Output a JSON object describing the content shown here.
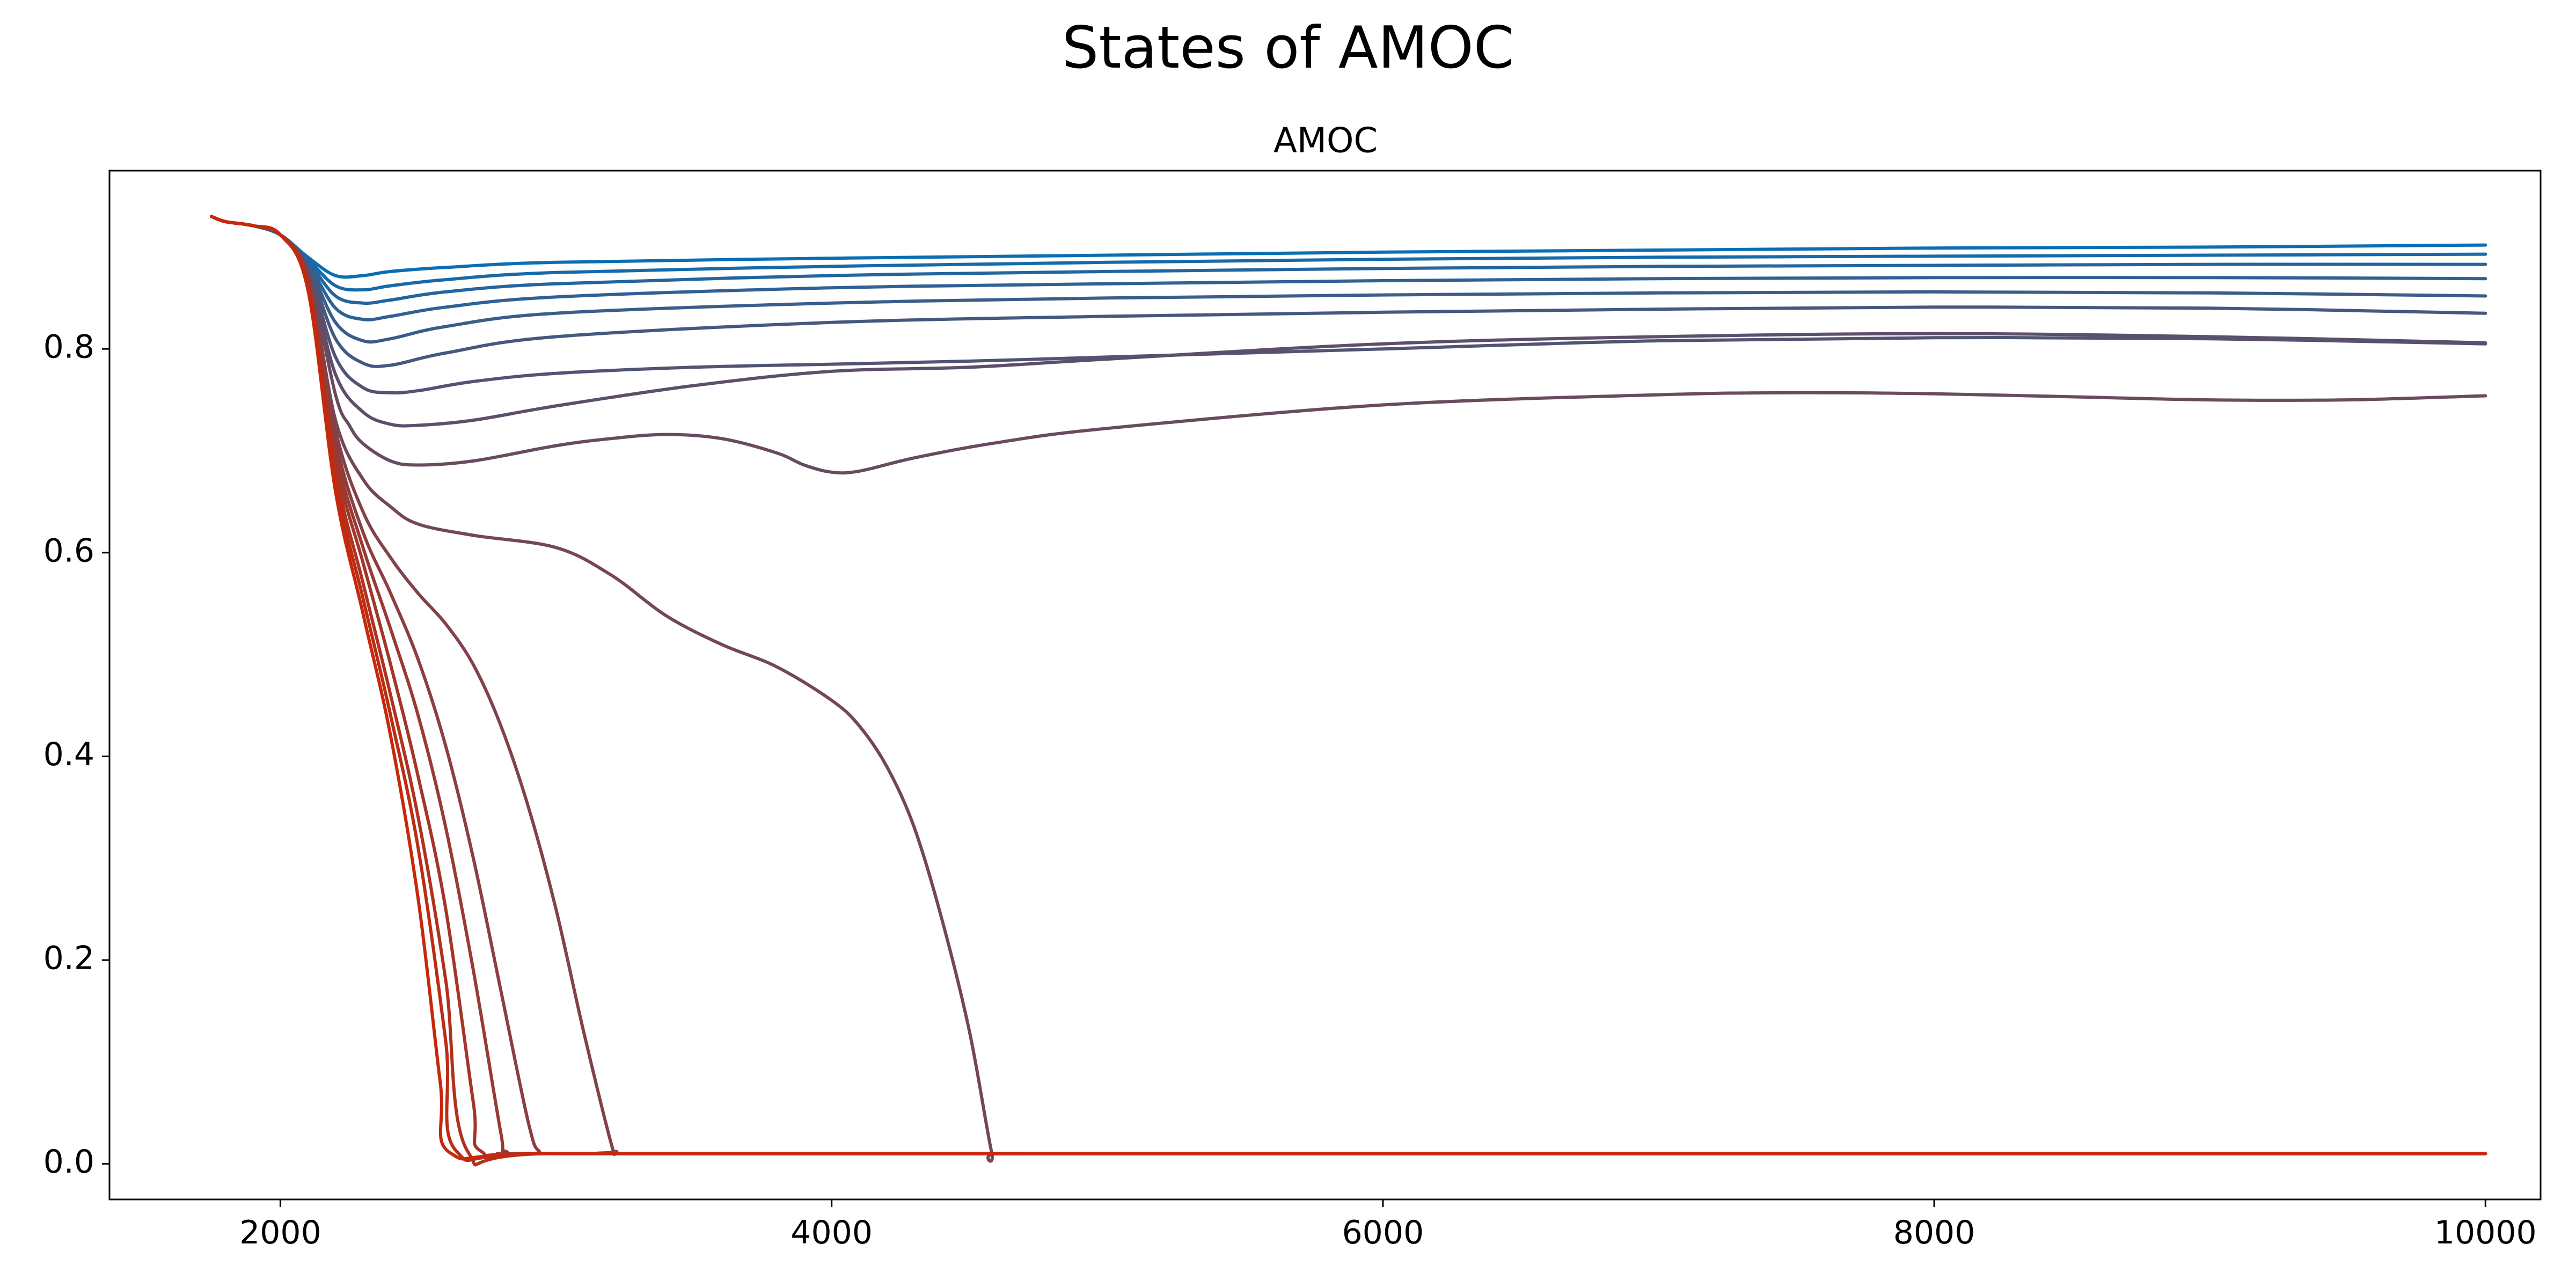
{
  "figure": {
    "suptitle": "States of AMOC"
  },
  "chart_data": {
    "type": "line",
    "title": "AMOC",
    "xlabel": "",
    "ylabel": "",
    "xlim": [
      1380,
      10200
    ],
    "ylim": [
      -0.035,
      0.975
    ],
    "xticks": [
      2000,
      4000,
      6000,
      8000,
      10000
    ],
    "xtick_labels": [
      "2000",
      "4000",
      "6000",
      "8000",
      "10000"
    ],
    "yticks": [
      0.0,
      0.2,
      0.4,
      0.6,
      0.8
    ],
    "ytick_labels": [
      "0.0",
      "0.2",
      "0.4",
      "0.6",
      "0.8"
    ],
    "grid": false,
    "legend": "none",
    "color_from": "#0a6eb4",
    "color_to": "#c8280a",
    "series": [
      {
        "x": [
          1750,
          1800,
          1900,
          2000,
          2100,
          2200,
          2300,
          2400,
          2600,
          3000,
          4000,
          5000,
          6000,
          7000,
          8000,
          9000,
          10000
        ],
        "y": [
          0.93,
          0.925,
          0.921,
          0.912,
          0.89,
          0.872,
          0.872,
          0.876,
          0.88,
          0.885,
          0.889,
          0.892,
          0.895,
          0.897,
          0.899,
          0.9,
          0.902
        ]
      },
      {
        "x": [
          1750,
          1800,
          1900,
          2000,
          2100,
          2200,
          2300,
          2400,
          2600,
          3000,
          4000,
          5000,
          6000,
          7000,
          8000,
          9000,
          10000
        ],
        "y": [
          0.93,
          0.925,
          0.921,
          0.912,
          0.888,
          0.862,
          0.858,
          0.862,
          0.868,
          0.875,
          0.881,
          0.885,
          0.888,
          0.89,
          0.891,
          0.892,
          0.893
        ]
      },
      {
        "x": [
          1750,
          1800,
          1900,
          2000,
          2100,
          2200,
          2300,
          2400,
          2600,
          3000,
          4000,
          5000,
          6000,
          7000,
          8000,
          9000,
          10000
        ],
        "y": [
          0.93,
          0.925,
          0.921,
          0.912,
          0.886,
          0.852,
          0.845,
          0.848,
          0.856,
          0.864,
          0.872,
          0.876,
          0.879,
          0.881,
          0.882,
          0.883,
          0.883
        ]
      },
      {
        "x": [
          1750,
          1800,
          1900,
          2000,
          2100,
          2200,
          2300,
          2400,
          2600,
          3000,
          4000,
          5000,
          6000,
          7000,
          8000,
          9000,
          10000
        ],
        "y": [
          0.93,
          0.925,
          0.921,
          0.912,
          0.884,
          0.84,
          0.829,
          0.832,
          0.841,
          0.851,
          0.86,
          0.864,
          0.867,
          0.869,
          0.87,
          0.87,
          0.869
        ]
      },
      {
        "x": [
          1750,
          1800,
          1900,
          2000,
          2100,
          2200,
          2300,
          2400,
          2600,
          3000,
          4000,
          5000,
          6000,
          7000,
          8000,
          9000,
          10000
        ],
        "y": [
          0.93,
          0.925,
          0.921,
          0.912,
          0.882,
          0.826,
          0.808,
          0.81,
          0.822,
          0.835,
          0.845,
          0.85,
          0.853,
          0.855,
          0.856,
          0.855,
          0.852
        ]
      },
      {
        "x": [
          1750,
          1800,
          1900,
          2000,
          2100,
          2200,
          2300,
          2400,
          2600,
          3000,
          4000,
          5000,
          6000,
          7000,
          8000,
          9000,
          10000
        ],
        "y": [
          0.93,
          0.925,
          0.921,
          0.912,
          0.88,
          0.81,
          0.786,
          0.784,
          0.796,
          0.812,
          0.826,
          0.832,
          0.836,
          0.839,
          0.841,
          0.84,
          0.835
        ]
      },
      {
        "x": [
          1750,
          1800,
          1900,
          2000,
          2100,
          2200,
          2300,
          2400,
          2500,
          2700,
          3000,
          3500,
          4000,
          4500,
          5000,
          6000,
          7000,
          8000,
          9000,
          10000
        ],
        "y": [
          0.93,
          0.925,
          0.921,
          0.912,
          0.878,
          0.792,
          0.762,
          0.757,
          0.759,
          0.768,
          0.776,
          0.782,
          0.785,
          0.788,
          0.792,
          0.8,
          0.808,
          0.811,
          0.81,
          0.805
        ]
      },
      {
        "x": [
          1750,
          1800,
          1900,
          2000,
          2100,
          2200,
          2300,
          2400,
          2500,
          2700,
          3000,
          3500,
          4000,
          4500,
          5000,
          6000,
          7000,
          8000,
          9000,
          10000
        ],
        "y": [
          0.93,
          0.925,
          0.921,
          0.912,
          0.876,
          0.775,
          0.738,
          0.726,
          0.725,
          0.73,
          0.744,
          0.764,
          0.778,
          0.782,
          0.79,
          0.805,
          0.812,
          0.815,
          0.812,
          0.806
        ]
      },
      {
        "x": [
          1750,
          1800,
          1900,
          2000,
          2100,
          2200,
          2250,
          2300,
          2400,
          2500,
          2700,
          3000,
          3200,
          3400,
          3600,
          3800,
          3900,
          4000,
          4100,
          4300,
          4600,
          5000,
          6000,
          7000,
          7500,
          8000,
          8500,
          9000,
          9500,
          10000
        ],
        "y": [
          0.93,
          0.925,
          0.921,
          0.912,
          0.874,
          0.755,
          0.725,
          0.707,
          0.69,
          0.686,
          0.69,
          0.705,
          0.712,
          0.716,
          0.712,
          0.698,
          0.686,
          0.679,
          0.68,
          0.693,
          0.708,
          0.722,
          0.745,
          0.755,
          0.757,
          0.756,
          0.753,
          0.75,
          0.75,
          0.754
        ]
      },
      {
        "x": [
          1750,
          1800,
          1900,
          2000,
          2100,
          2200,
          2300,
          2400,
          2500,
          2700,
          3000,
          3200,
          3400,
          3600,
          3800,
          4000,
          4100,
          4200,
          4300,
          4400,
          4500,
          4580,
          4600,
          5000,
          7000,
          10000
        ],
        "y": [
          0.93,
          0.925,
          0.921,
          0.912,
          0.872,
          0.73,
          0.672,
          0.645,
          0.628,
          0.617,
          0.605,
          0.578,
          0.538,
          0.51,
          0.488,
          0.455,
          0.43,
          0.39,
          0.33,
          0.24,
          0.13,
          0.012,
          0.01,
          0.01,
          0.01,
          0.01
        ]
      },
      {
        "x": [
          1750,
          1800,
          1900,
          2000,
          2100,
          2200,
          2300,
          2400,
          2500,
          2600,
          2700,
          2800,
          2900,
          3000,
          3100,
          3200,
          3220,
          3300,
          5000,
          10000
        ],
        "y": [
          0.93,
          0.925,
          0.921,
          0.912,
          0.87,
          0.72,
          0.64,
          0.595,
          0.56,
          0.53,
          0.49,
          0.43,
          0.35,
          0.25,
          0.13,
          0.02,
          0.012,
          0.01,
          0.01,
          0.01
        ]
      },
      {
        "x": [
          1750,
          1800,
          1900,
          2000,
          2100,
          2200,
          2300,
          2400,
          2500,
          2600,
          2700,
          2800,
          2900,
          2940,
          3000,
          5000,
          10000
        ],
        "y": [
          0.93,
          0.925,
          0.921,
          0.912,
          0.868,
          0.71,
          0.62,
          0.56,
          0.495,
          0.41,
          0.3,
          0.17,
          0.04,
          0.012,
          0.01,
          0.01,
          0.01
        ]
      },
      {
        "x": [
          1750,
          1800,
          1900,
          2000,
          2100,
          2200,
          2300,
          2400,
          2500,
          2600,
          2700,
          2800,
          2820,
          3000,
          5000,
          10000
        ],
        "y": [
          0.93,
          0.925,
          0.921,
          0.912,
          0.866,
          0.7,
          0.605,
          0.525,
          0.44,
          0.33,
          0.19,
          0.03,
          0.012,
          0.01,
          0.01,
          0.01
        ]
      },
      {
        "x": [
          1750,
          1800,
          1900,
          2000,
          2100,
          2200,
          2300,
          2400,
          2500,
          2600,
          2700,
          2730,
          3000,
          5000,
          10000
        ],
        "y": [
          0.93,
          0.925,
          0.921,
          0.912,
          0.864,
          0.69,
          0.59,
          0.49,
          0.38,
          0.25,
          0.06,
          0.012,
          0.01,
          0.01,
          0.01
        ]
      },
      {
        "x": [
          1750,
          1800,
          1900,
          2000,
          2100,
          2200,
          2300,
          2400,
          2500,
          2600,
          2680,
          3000,
          5000,
          10000
        ],
        "y": [
          0.93,
          0.925,
          0.921,
          0.912,
          0.862,
          0.68,
          0.57,
          0.46,
          0.34,
          0.18,
          0.012,
          0.01,
          0.01,
          0.01
        ]
      },
      {
        "x": [
          1750,
          1800,
          1900,
          2000,
          2100,
          2200,
          2300,
          2400,
          2500,
          2600,
          2640,
          3000,
          5000,
          10000
        ],
        "y": [
          0.93,
          0.925,
          0.921,
          0.912,
          0.86,
          0.67,
          0.555,
          0.44,
          0.31,
          0.12,
          0.012,
          0.01,
          0.01,
          0.01
        ]
      },
      {
        "x": [
          1750,
          1800,
          1900,
          2000,
          2100,
          2200,
          2300,
          2400,
          2500,
          2580,
          2620,
          3000,
          5000,
          10000
        ],
        "y": [
          0.93,
          0.925,
          0.921,
          0.912,
          0.858,
          0.66,
          0.54,
          0.42,
          0.26,
          0.08,
          0.01,
          0.01,
          0.01,
          0.01
        ]
      }
    ]
  }
}
